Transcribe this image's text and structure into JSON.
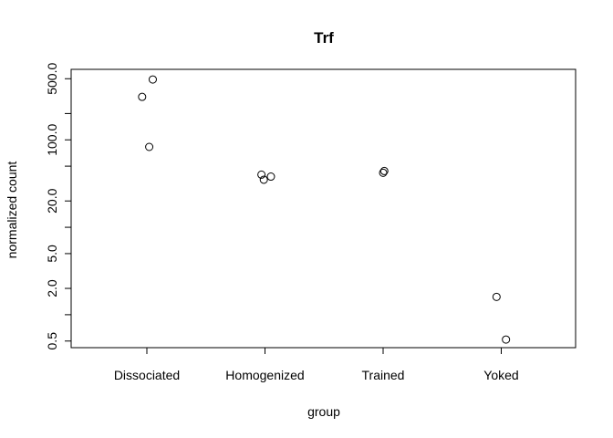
{
  "chart_data": {
    "type": "scatter",
    "title": "Trf",
    "xlabel": "group",
    "ylabel": "normalized count",
    "y_scale": "log",
    "categories": [
      "Dissociated",
      "Homogenized",
      "Trained",
      "Yoked"
    ],
    "yticks": [
      "0.5",
      "2.0",
      "5.0",
      "20.0",
      "100.0",
      "500.0"
    ],
    "ytick_values": [
      0.5,
      2,
      5,
      20,
      100,
      500
    ],
    "yminor_ticks": [
      1,
      10,
      50,
      200
    ],
    "ylim": [
      0.42,
      640
    ],
    "points": [
      {
        "category": "Dissociated",
        "jitter": -0.04,
        "y": 310
      },
      {
        "category": "Dissociated",
        "jitter": 0.05,
        "y": 490
      },
      {
        "category": "Dissociated",
        "jitter": 0.02,
        "y": 83
      },
      {
        "category": "Homogenized",
        "jitter": -0.03,
        "y": 40
      },
      {
        "category": "Homogenized",
        "jitter": -0.01,
        "y": 35
      },
      {
        "category": "Homogenized",
        "jitter": 0.05,
        "y": 38
      },
      {
        "category": "Trained",
        "jitter": 0.0,
        "y": 42
      },
      {
        "category": "Trained",
        "jitter": 0.01,
        "y": 44
      },
      {
        "category": "Yoked",
        "jitter": -0.04,
        "y": 1.6
      },
      {
        "category": "Yoked",
        "jitter": 0.04,
        "y": 0.52
      }
    ],
    "grid": false,
    "legend": "none"
  }
}
